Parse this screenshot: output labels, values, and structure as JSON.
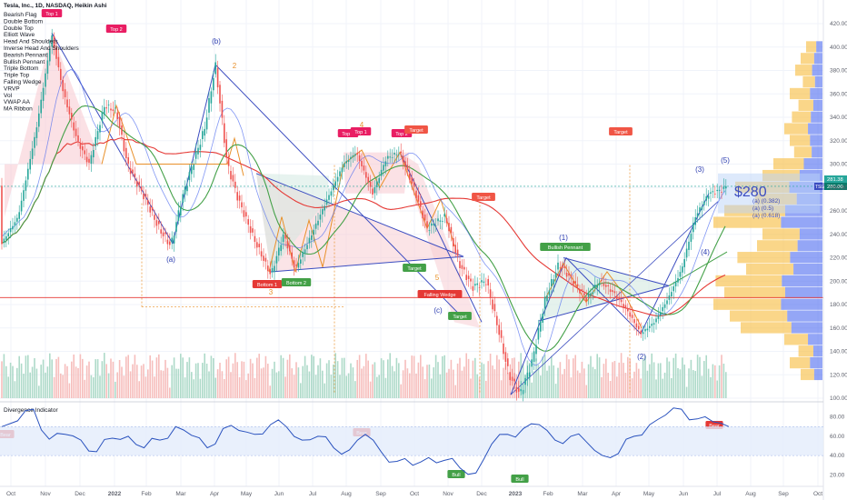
{
  "header": {
    "title": "Tesla, Inc., 1D, NASDAQ, Heikin Ashi",
    "indicators": [
      "Bearish Flag",
      "Double Bottom",
      "Double Top",
      "Elliott Wave",
      "Head And Shoulders",
      "Inverse Head And Shoulders",
      "Bearish Pennant",
      "Bullish Pennant",
      "Triple Bottom",
      "Triple Top",
      "Falling Wedge",
      "VRVP",
      "Vol",
      "VWAP AA",
      "MA Ribbon"
    ]
  },
  "price_badges": {
    "last_upper": "281.38",
    "symbol": "TSLA",
    "last_lower": "280.00"
  },
  "annotations": {
    "price_target": "$280",
    "fib": [
      "(a) (0.382)",
      "(a) (0.5)",
      "(a) (0.618)"
    ],
    "bottom_indicator": "Divergence Indicator",
    "top1": "Top 1",
    "top2": "Top 2",
    "bottom1": "Bottom 1",
    "bottom2": "Bottom 2",
    "target": "Target",
    "bullish_pennant": "Bullish Pennant",
    "falling_wedge": "Falling Wedge",
    "bear": "Bear",
    "bull": "Bull",
    "waves": {
      "a": "(a)",
      "b": "(b)",
      "c": "(c)",
      "w1": "(1)",
      "w2": "(2)",
      "w3": "(3)",
      "w4": "(4)",
      "w5": "(5)"
    },
    "orange": {
      "n2": "2",
      "n3": "3",
      "n4": "4",
      "n5": "5"
    }
  },
  "colors": {
    "up": "#26a69a",
    "down": "#ef5350",
    "blue": "#3b4cc0",
    "ma_red": "#e53935",
    "ma_green": "#43a047",
    "vrvp_blue": "#4d6bf0",
    "vrvp_yellow": "#f7c04a",
    "osc": "#2a52be"
  },
  "chart_data": {
    "type": "line",
    "title": "Tesla, Inc., 1D, NASDAQ, Heikin Ashi",
    "x": [
      "2021-10-01",
      "2021-11-04",
      "2021-12-01",
      "2022-01-03",
      "2022-02-01",
      "2022-03-01",
      "2022-04-04",
      "2022-05-02",
      "2022-06-01",
      "2022-07-01",
      "2022-08-01",
      "2022-09-01",
      "2022-10-03",
      "2022-11-01",
      "2022-12-01",
      "2023-01-03",
      "2023-02-01",
      "2023-03-01",
      "2023-04-03",
      "2023-05-01",
      "2023-06-01",
      "2023-07-03",
      "2023-07-19"
    ],
    "series": [
      {
        "values": [
          250,
          410,
          335,
          352,
          300,
          285,
          385,
          240,
          230,
          265,
          300,
          295,
          230,
          195,
          170,
          103,
          185,
          205,
          190,
          160,
          210,
          275,
          281
        ]
      }
    ],
    "x_ticks": [
      "Oct",
      "Nov",
      "Dec",
      "2022",
      "Feb",
      "Mar",
      "Apr",
      "May",
      "Jun",
      "Jul",
      "Aug",
      "Sep",
      "Oct",
      "Nov",
      "Dec",
      "2023",
      "Feb",
      "Mar",
      "Apr",
      "May",
      "Jun",
      "Jul",
      "Aug",
      "Sep",
      "Oct"
    ],
    "y_ticks": [
      "420.00",
      "400.00",
      "380.00",
      "360.00",
      "340.00",
      "320.00",
      "300.00",
      "280.00",
      "260.00",
      "240.00",
      "220.00",
      "200.00",
      "180.00",
      "160.00",
      "140.00",
      "120.00",
      "100.00"
    ],
    "ylim": [
      100,
      420
    ],
    "oscillator": {
      "name": "Divergence Indicator",
      "y_ticks": [
        "80.00",
        "60.00",
        "40.00",
        "20.00"
      ],
      "ylim": [
        10,
        90
      ],
      "band": [
        40,
        70
      ],
      "values": [
        70,
        76,
        88,
        57,
        62,
        56,
        44,
        58,
        60,
        48,
        56,
        70,
        61,
        48,
        68,
        66,
        62,
        72,
        70,
        56,
        60,
        48,
        46,
        62,
        44,
        34,
        30,
        38,
        35,
        27,
        22,
        52,
        62,
        68,
        72,
        56,
        60,
        54,
        40,
        42,
        60,
        72,
        82,
        88,
        78,
        75,
        70
      ]
    }
  }
}
